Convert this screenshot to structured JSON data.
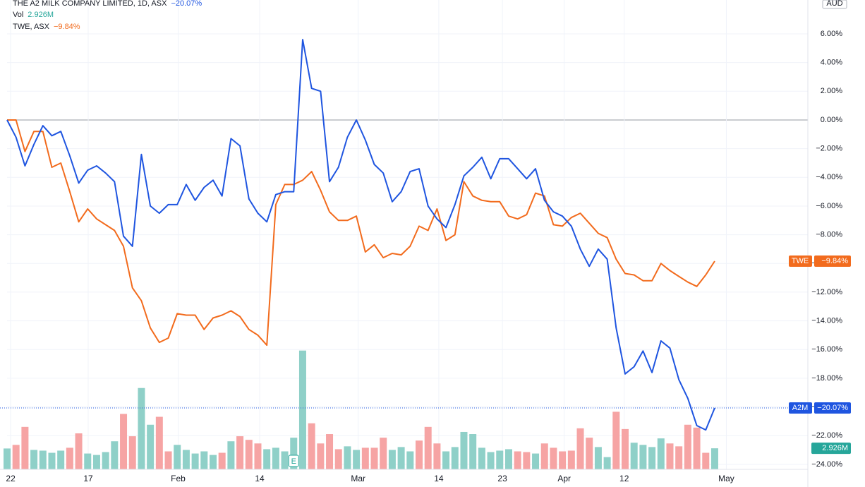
{
  "chart_data": {
    "type": "line",
    "currency": "AUD",
    "xlim": [
      0,
      89.4
    ],
    "ylim": [
      -24.35,
      8.36
    ],
    "xticks": [
      {
        "value": 0.4,
        "label": "22"
      },
      {
        "value": 9.06,
        "label": "17"
      },
      {
        "value": 19.1,
        "label": "Feb"
      },
      {
        "value": 28.2,
        "label": "14"
      },
      {
        "value": 39.2,
        "label": "Mar"
      },
      {
        "value": 48.2,
        "label": "14"
      },
      {
        "value": 55.3,
        "label": "23"
      },
      {
        "value": 62.2,
        "label": "Apr"
      },
      {
        "value": 68.9,
        "label": "12"
      },
      {
        "value": 80.3,
        "label": "May"
      }
    ],
    "yticks": [
      {
        "value": 6,
        "label": "6.00%"
      },
      {
        "value": 4,
        "label": "4.00%"
      },
      {
        "value": 2,
        "label": "2.00%"
      },
      {
        "value": 0,
        "label": "0.00%"
      },
      {
        "value": -2,
        "label": "−2.00%"
      },
      {
        "value": -4,
        "label": "−4.00%"
      },
      {
        "value": -6,
        "label": "−6.00%"
      },
      {
        "value": -8,
        "label": "−8.00%"
      },
      {
        "value": -10,
        "label": "−10.00%"
      },
      {
        "value": -12,
        "label": "−12.00%"
      },
      {
        "value": -14,
        "label": "−14.00%"
      },
      {
        "value": -16,
        "label": "−16.00%"
      },
      {
        "value": -18,
        "label": "−18.00%"
      },
      {
        "value": -20,
        "label": "−20.00%"
      },
      {
        "value": -22,
        "label": "−22.00%"
      },
      {
        "value": -24,
        "label": "−24.00%"
      }
    ],
    "grid": true,
    "series": [
      {
        "name": "THE A2 MILK COMPANY LIMITED, 1D, ASX",
        "badge": "A2M",
        "change_label": "−20.07%",
        "color": "#1f55e0",
        "values": [
          0,
          -1.2,
          -3.2,
          -1.7,
          -0.4,
          -1.1,
          -0.8,
          -2.5,
          -4.4,
          -3.5,
          -3.2,
          -3.7,
          -4.3,
          -8.1,
          -8.8,
          -2.4,
          -6.0,
          -6.5,
          -5.9,
          -5.9,
          -4.5,
          -5.6,
          -4.7,
          -4.2,
          -5.3,
          -1.3,
          -1.8,
          -5.5,
          -6.5,
          -7.1,
          -5.2,
          -5.0,
          -5.0,
          5.6,
          2.2,
          2.0,
          -4.3,
          -3.3,
          -1.2,
          0,
          -1.4,
          -3.1,
          -3.7,
          -5.7,
          -5.0,
          -3.6,
          -3.4,
          -6.0,
          -6.9,
          -7.5,
          -5.9,
          -3.9,
          -3.3,
          -2.6,
          -4.1,
          -2.7,
          -2.7,
          -3.4,
          -4.1,
          -3.4,
          -5.6,
          -6.4,
          -6.7,
          -7.4,
          -9.0,
          -10.2,
          -9.0,
          -9.7,
          -14.5,
          -17.7,
          -17.2,
          -16.1,
          -17.6,
          -15.4,
          -15.9,
          -18.1,
          -19.4,
          -21.3,
          -21.6,
          -20.07
        ]
      },
      {
        "name": "TWE, ASX",
        "badge": "TWE",
        "change_label": "−9.84%",
        "color": "#f26b1d",
        "values": [
          0,
          0,
          -2.2,
          -0.8,
          -0.8,
          -3.3,
          -3.0,
          -5.0,
          -7.1,
          -6.2,
          -6.9,
          -7.3,
          -7.7,
          -8.8,
          -11.7,
          -12.6,
          -14.5,
          -15.5,
          -15.2,
          -13.5,
          -13.6,
          -13.6,
          -14.6,
          -13.8,
          -13.6,
          -13.3,
          -13.7,
          -14.6,
          -15.0,
          -15.7,
          -5.9,
          -4.5,
          -4.5,
          -4.2,
          -3.6,
          -4.9,
          -6.4,
          -7.0,
          -7.0,
          -6.7,
          -9.2,
          -8.7,
          -9.6,
          -9.3,
          -9.4,
          -8.8,
          -7.4,
          -7.7,
          -6.2,
          -8.4,
          -8.0,
          -4.3,
          -5.3,
          -5.6,
          -5.7,
          -5.7,
          -6.7,
          -6.9,
          -6.6,
          -5.1,
          -5.3,
          -7.3,
          -7.4,
          -6.8,
          -6.5,
          -7.2,
          -7.9,
          -8.2,
          -9.7,
          -10.7,
          -10.8,
          -11.2,
          -11.2,
          -10.0,
          -10.5,
          -10.9,
          -11.3,
          -11.6,
          -10.8,
          -9.84
        ]
      }
    ],
    "volume": {
      "name": "Vol",
      "last_label": "2.926M",
      "up_color": "#8fd0c8",
      "down_color": "#f6a4a4",
      "label_color": "#26a69a",
      "values": [
        2.9,
        3.4,
        5.9,
        2.7,
        2.6,
        2.3,
        2.6,
        3.0,
        5.0,
        2.2,
        2.0,
        2.4,
        3.9,
        7.7,
        4.6,
        11.3,
        6.2,
        7.3,
        2.5,
        3.4,
        2.7,
        2.2,
        2.5,
        2.0,
        2.3,
        3.9,
        4.6,
        4.1,
        3.6,
        2.8,
        3.0,
        2.5,
        4.4,
        16.5,
        6.4,
        3.6,
        4.9,
        2.8,
        3.2,
        2.7,
        3.0,
        3.0,
        4.4,
        2.7,
        3.1,
        2.5,
        4.0,
        5.9,
        3.6,
        2.5,
        3.1,
        5.2,
        4.9,
        3.0,
        2.4,
        2.6,
        2.8,
        2.5,
        2.4,
        2.2,
        3.6,
        3.0,
        2.5,
        2.6,
        5.7,
        4.4,
        3.1,
        1.7,
        8.0,
        5.6,
        3.7,
        3.4,
        3.1,
        4.3,
        3.6,
        3.2,
        6.2,
        5.8,
        2.3,
        2.926
      ],
      "up": [
        true,
        false,
        false,
        true,
        true,
        true,
        true,
        false,
        false,
        true,
        true,
        true,
        true,
        false,
        false,
        true,
        true,
        false,
        false,
        true,
        true,
        true,
        true,
        true,
        false,
        true,
        false,
        false,
        false,
        true,
        true,
        true,
        true,
        true,
        false,
        false,
        false,
        false,
        true,
        true,
        false,
        false,
        false,
        true,
        true,
        true,
        false,
        false,
        false,
        true,
        true,
        true,
        true,
        true,
        true,
        true,
        true,
        false,
        false,
        true,
        false,
        false,
        false,
        false,
        false,
        false,
        true,
        true,
        false,
        false,
        true,
        true,
        true,
        true,
        false,
        false,
        false,
        false,
        false,
        true
      ]
    },
    "earnings_marker": {
      "index": 32,
      "label": "E"
    }
  }
}
